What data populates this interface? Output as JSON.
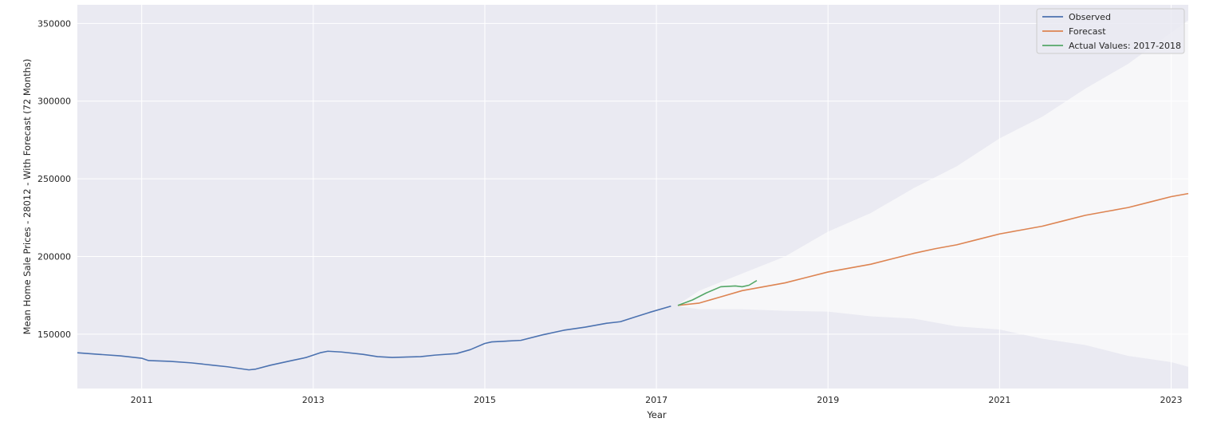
{
  "chart_data": {
    "type": "line",
    "title": "",
    "xlabel": "Year",
    "ylabel": "Mean Home Sale Prices - 28012 - With Forecast (72 Months)",
    "xlim": [
      2010.25,
      2023.2
    ],
    "ylim": [
      115000,
      362000
    ],
    "x_ticks": [
      2011,
      2013,
      2015,
      2017,
      2019,
      2021,
      2023
    ],
    "x_tick_labels": [
      "2011",
      "2013",
      "2015",
      "2017",
      "2019",
      "2021",
      "2023"
    ],
    "y_ticks": [
      150000,
      200000,
      250000,
      300000,
      350000
    ],
    "y_tick_labels": [
      "150000",
      "200000",
      "250000",
      "300000",
      "350000"
    ],
    "grid": true,
    "legend_position": "top-right",
    "colors": {
      "background": "#EAEAF2",
      "grid": "#FFFFFF",
      "observed": "#4C72B0",
      "forecast": "#DD8452",
      "actual": "#55A868",
      "confidence_band": "#F7F7F9"
    },
    "series": [
      {
        "name": "Observed",
        "x": [
          2010.25,
          2010.5,
          2010.75,
          2011.0,
          2011.08,
          2011.33,
          2011.58,
          2011.83,
          2012.0,
          2012.25,
          2012.33,
          2012.5,
          2012.75,
          2012.92,
          2013.08,
          2013.17,
          2013.33,
          2013.58,
          2013.75,
          2013.92,
          2014.25,
          2014.42,
          2014.67,
          2014.83,
          2015.0,
          2015.08,
          2015.42,
          2015.67,
          2015.92,
          2016.17,
          2016.42,
          2016.58,
          2016.75,
          2016.92,
          2017.17
        ],
        "y": [
          138000,
          137000,
          136000,
          134500,
          133000,
          132500,
          131500,
          130000,
          129000,
          127000,
          127500,
          130000,
          133000,
          135000,
          138000,
          139000,
          138500,
          137000,
          135500,
          135000,
          135500,
          136500,
          137500,
          140000,
          144000,
          145000,
          146000,
          149500,
          152500,
          154500,
          157000,
          158000,
          161000,
          164000,
          168000
        ]
      },
      {
        "name": "Forecast",
        "x": [
          2017.25,
          2017.5,
          2017.75,
          2018.0,
          2018.25,
          2018.5,
          2018.75,
          2019.0,
          2019.25,
          2019.5,
          2019.75,
          2020.0,
          2020.25,
          2020.5,
          2020.75,
          2021.0,
          2021.25,
          2021.5,
          2021.75,
          2022.0,
          2022.25,
          2022.5,
          2022.75,
          2023.0,
          2023.2
        ],
        "y": [
          168500,
          170000,
          174000,
          178000,
          180500,
          183000,
          186500,
          190000,
          192500,
          195000,
          198500,
          202000,
          205000,
          207500,
          211000,
          214500,
          217000,
          219500,
          223000,
          226500,
          229000,
          231500,
          235000,
          238500,
          240500
        ]
      },
      {
        "name": "Actual Values: 2017-2018",
        "x": [
          2017.25,
          2017.42,
          2017.58,
          2017.75,
          2017.92,
          2018.0,
          2018.08,
          2018.17
        ],
        "y": [
          168500,
          172000,
          176500,
          180500,
          181000,
          180500,
          181500,
          184500
        ]
      }
    ],
    "confidence_band": {
      "x": [
        2017.25,
        2017.5,
        2018.0,
        2018.5,
        2019.0,
        2019.5,
        2020.0,
        2020.5,
        2021.0,
        2021.5,
        2022.0,
        2022.5,
        2023.0,
        2023.2
      ],
      "upper": [
        169000,
        178000,
        189000,
        200000,
        216000,
        228000,
        244000,
        258000,
        276000,
        290000,
        308000,
        324000,
        344000,
        352000
      ],
      "lower": [
        168000,
        166000,
        166000,
        165000,
        164500,
        161500,
        160000,
        155000,
        153000,
        147000,
        143000,
        136000,
        132000,
        129000
      ]
    }
  }
}
